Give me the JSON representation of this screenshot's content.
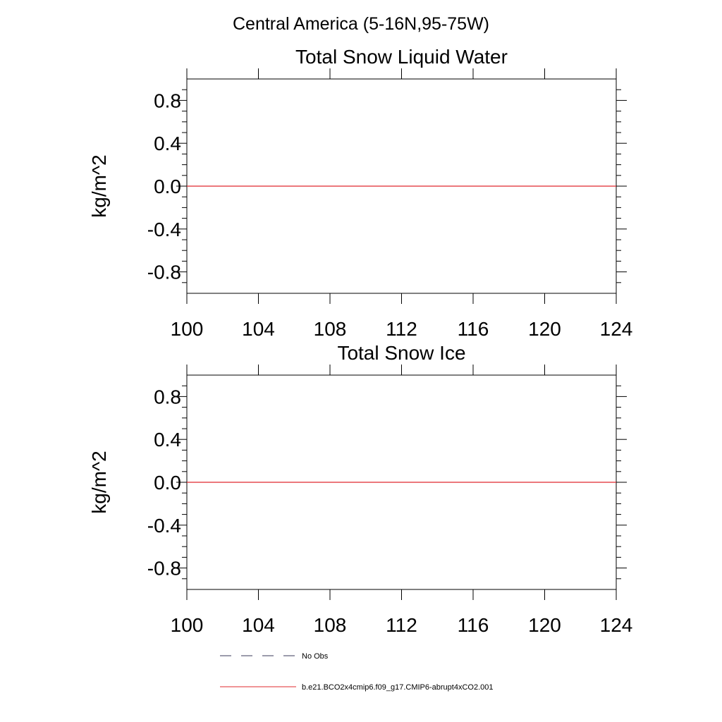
{
  "figure": {
    "main_title": "Central America (5-16N,95-75W)"
  },
  "legend": {
    "items": [
      {
        "label": "No Obs",
        "style": "dashed",
        "color": "#3a3a5a"
      },
      {
        "label": "b.e21.BCO2x4cmip6.f09_g17.CMIP6-abrupt4xCO2.001",
        "style": "solid",
        "color": "#e0282e"
      }
    ]
  },
  "chart_data": [
    {
      "type": "line",
      "title": "Total Snow Liquid Water",
      "xlabel": "",
      "ylabel": "kg/m^2",
      "xlim": [
        100,
        124
      ],
      "ylim": [
        -1,
        1
      ],
      "xticks": [
        100,
        104,
        108,
        112,
        116,
        120,
        124
      ],
      "xtick_labels": [
        "100",
        "104",
        "108",
        "112",
        "116",
        "120",
        "124"
      ],
      "yticks": [
        0.8,
        0.4,
        0.0,
        -0.4,
        -0.8
      ],
      "ytick_labels": [
        "0.8",
        "0.4",
        "0.0",
        "-0.4",
        "-0.8"
      ],
      "grid": false,
      "series": [
        {
          "name": "b.e21.BCO2x4cmip6.f09_g17.CMIP6-abrupt4xCO2.001",
          "color": "#e0282e",
          "x": [
            100,
            124
          ],
          "y": [
            0,
            0
          ]
        }
      ]
    },
    {
      "type": "line",
      "title": "Total Snow Ice",
      "xlabel": "",
      "ylabel": "kg/m^2",
      "xlim": [
        100,
        124
      ],
      "ylim": [
        -1,
        1
      ],
      "xticks": [
        100,
        104,
        108,
        112,
        116,
        120,
        124
      ],
      "xtick_labels": [
        "100",
        "104",
        "108",
        "112",
        "116",
        "120",
        "124"
      ],
      "yticks": [
        0.8,
        0.4,
        0.0,
        -0.4,
        -0.8
      ],
      "ytick_labels": [
        "0.8",
        "0.4",
        "0.0",
        "-0.4",
        "-0.8"
      ],
      "grid": false,
      "series": [
        {
          "name": "b.e21.BCO2x4cmip6.f09_g17.CMIP6-abrupt4xCO2.001",
          "color": "#e0282e",
          "x": [
            100,
            124
          ],
          "y": [
            0,
            0
          ]
        }
      ]
    }
  ]
}
